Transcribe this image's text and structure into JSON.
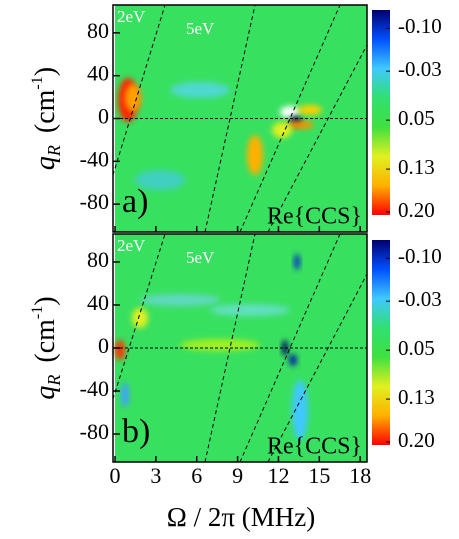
{
  "chart_data": [
    {
      "type": "heatmap",
      "panel_label": "a)",
      "annotation": "Re{CCS}",
      "line_labels": [
        "2eV",
        "5eV"
      ],
      "y_label": {
        "symbol": "q",
        "subscript": "R",
        "unit": "(cm",
        "exponent": "-1",
        "close": ")"
      },
      "xlim": [
        0,
        18.5
      ],
      "xticks": [
        0,
        3,
        6,
        9,
        12,
        15,
        18
      ],
      "ylim": [
        -106,
        106
      ],
      "yticks": [
        80,
        40,
        0,
        -40,
        -80
      ],
      "clim": [
        -0.13,
        0.205
      ],
      "cticks": [
        {
          "value": -0.1,
          "label": "-0.10"
        },
        -0.03,
        0.05,
        0.13,
        {
          "value": 0.2,
          "label": "0.20"
        }
      ],
      "colormap": [
        "#00006e",
        "#0050ff",
        "#40c8ff",
        "#30e070",
        "#40e040",
        "#e0f020",
        "#ffb000",
        "#ff0000"
      ]
    },
    {
      "type": "heatmap",
      "panel_label": "b)",
      "annotation": "Re{CCS}",
      "line_labels": [
        "2eV",
        "5eV"
      ],
      "y_label": {
        "symbol": "q",
        "subscript": "R",
        "unit": "(cm",
        "exponent": "-1",
        "close": ")"
      },
      "x_label": "Ω / 2π   (MHz)",
      "xlim": [
        0,
        18.5
      ],
      "xticks": [
        0,
        3,
        6,
        9,
        12,
        15,
        18
      ],
      "ylim": [
        -106,
        106
      ],
      "yticks": [
        80,
        40,
        0,
        -40,
        -80
      ],
      "clim": [
        -0.13,
        0.205
      ],
      "cticks": [
        {
          "value": -0.1,
          "label": "-0.10"
        },
        -0.03,
        0.05,
        0.13,
        {
          "value": 0.2,
          "label": "0.20"
        }
      ],
      "colormap": [
        "#00006e",
        "#0050ff",
        "#40c8ff",
        "#30e070",
        "#40e040",
        "#e0f020",
        "#ffb000",
        "#ff0000"
      ]
    }
  ]
}
